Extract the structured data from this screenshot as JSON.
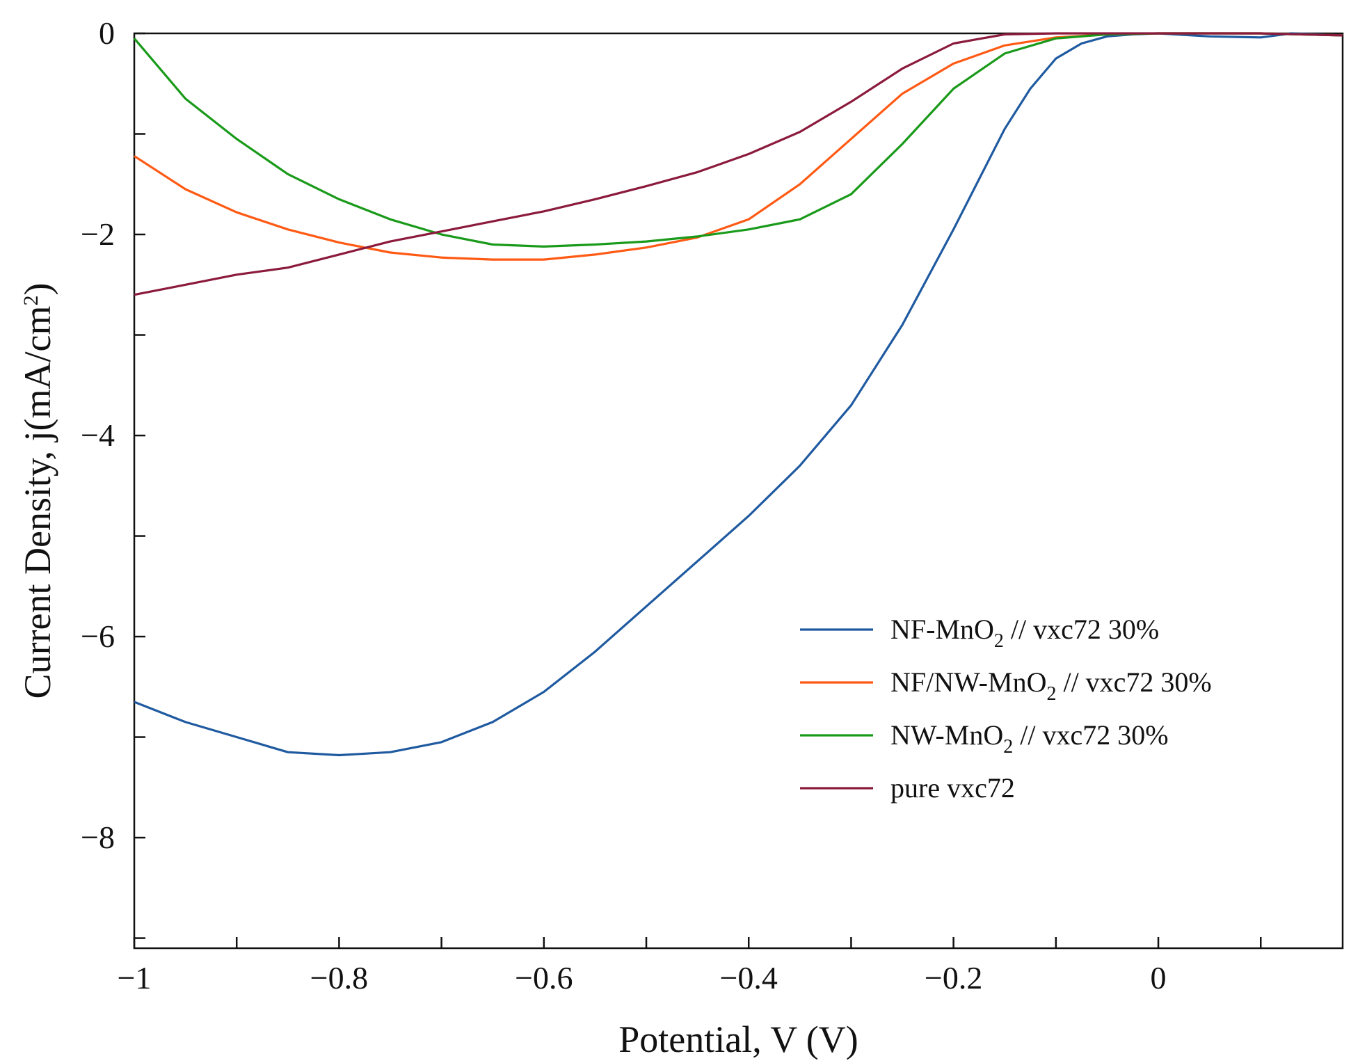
{
  "chart_data": {
    "type": "line",
    "title": "",
    "xlabel": "Potential, V (V)",
    "ylabel": {
      "base": "Current Density, j(mA/cm",
      "sup": "2",
      "end": ")"
    },
    "xlim": [
      -1.0,
      0.18
    ],
    "ylim": [
      -9.1,
      0.0
    ],
    "x_ticks": [
      {
        "value": -1.0,
        "label": "−1"
      },
      {
        "value": -0.8,
        "label": "−0.8"
      },
      {
        "value": -0.6,
        "label": "−0.6"
      },
      {
        "value": -0.4,
        "label": "−0.4"
      },
      {
        "value": -0.2,
        "label": "−0.2"
      },
      {
        "value": 0.0,
        "label": "0"
      }
    ],
    "x_minor_ticks": [
      -0.9,
      -0.7,
      -0.5,
      -0.3,
      -0.1,
      0.1
    ],
    "y_ticks": [
      {
        "value": 0,
        "label": "0"
      },
      {
        "value": -2,
        "label": "−2"
      },
      {
        "value": -4,
        "label": "−4"
      },
      {
        "value": -6,
        "label": "−6"
      },
      {
        "value": -8,
        "label": "−8"
      }
    ],
    "y_minor_ticks": [
      -1,
      -3,
      -5,
      -7,
      -9
    ],
    "grid": false,
    "legend_position": "center-right",
    "series": [
      {
        "name": "NF-MnO2 // vxc72 30%",
        "legend": {
          "pre": "NF-MnO",
          "sub": "2",
          "post": " // vxc72 30%"
        },
        "color": "#1f5aa0",
        "x": [
          -1.0,
          -0.95,
          -0.9,
          -0.85,
          -0.8,
          -0.75,
          -0.7,
          -0.65,
          -0.6,
          -0.55,
          -0.5,
          -0.45,
          -0.4,
          -0.35,
          -0.3,
          -0.25,
          -0.2,
          -0.175,
          -0.15,
          -0.125,
          -0.1,
          -0.075,
          -0.05,
          -0.025,
          0.0,
          0.05,
          0.1,
          0.13,
          0.18
        ],
        "y": [
          -6.65,
          -6.85,
          -7.0,
          -7.15,
          -7.18,
          -7.15,
          -7.05,
          -6.85,
          -6.55,
          -6.15,
          -5.7,
          -5.25,
          -4.8,
          -4.3,
          -3.7,
          -2.9,
          -1.95,
          -1.45,
          -0.95,
          -0.55,
          -0.25,
          -0.1,
          -0.03,
          -0.01,
          0.0,
          -0.03,
          -0.04,
          0.0,
          -0.02
        ]
      },
      {
        "name": "NF/NW-MnO2 // vxc72 30%",
        "legend": {
          "pre": "NF/NW-MnO",
          "sub": "2",
          "post": " // vxc72 30%"
        },
        "color": "#ff5a14",
        "x": [
          -1.0,
          -0.95,
          -0.9,
          -0.85,
          -0.8,
          -0.75,
          -0.7,
          -0.65,
          -0.6,
          -0.55,
          -0.5,
          -0.45,
          -0.4,
          -0.35,
          -0.3,
          -0.25,
          -0.2,
          -0.15,
          -0.1,
          -0.05,
          0.0,
          0.05,
          0.1,
          0.18
        ],
        "y": [
          -1.22,
          -1.55,
          -1.78,
          -1.95,
          -2.08,
          -2.18,
          -2.23,
          -2.25,
          -2.25,
          -2.2,
          -2.13,
          -2.03,
          -1.85,
          -1.5,
          -1.05,
          -0.6,
          -0.3,
          -0.12,
          -0.04,
          -0.01,
          0.0,
          0.0,
          0.0,
          -0.02
        ]
      },
      {
        "name": "NW-MnO2 // vxc72 30%",
        "legend": {
          "pre": "NW-MnO",
          "sub": "2",
          "post": " // vxc72 30%"
        },
        "color": "#1a9a1a",
        "x": [
          -1.0,
          -0.95,
          -0.9,
          -0.85,
          -0.8,
          -0.75,
          -0.7,
          -0.65,
          -0.6,
          -0.55,
          -0.5,
          -0.45,
          -0.4,
          -0.35,
          -0.3,
          -0.25,
          -0.2,
          -0.15,
          -0.1,
          -0.05,
          0.0,
          0.05,
          0.1,
          0.18
        ],
        "y": [
          -0.05,
          -0.65,
          -1.05,
          -1.4,
          -1.65,
          -1.85,
          -2.0,
          -2.1,
          -2.12,
          -2.1,
          -2.07,
          -2.02,
          -1.95,
          -1.85,
          -1.6,
          -1.1,
          -0.55,
          -0.2,
          -0.05,
          -0.01,
          0.0,
          0.0,
          0.0,
          -0.02
        ]
      },
      {
        "name": "pure vxc72",
        "legend": {
          "pre": "pure vxc72",
          "sub": "",
          "post": ""
        },
        "color": "#8b1a3c",
        "x": [
          -1.0,
          -0.95,
          -0.9,
          -0.85,
          -0.8,
          -0.75,
          -0.7,
          -0.65,
          -0.6,
          -0.55,
          -0.5,
          -0.45,
          -0.4,
          -0.35,
          -0.3,
          -0.25,
          -0.2,
          -0.15,
          -0.1,
          -0.05,
          0.0,
          0.05,
          0.1,
          0.18
        ],
        "y": [
          -2.6,
          -2.5,
          -2.4,
          -2.33,
          -2.2,
          -2.07,
          -1.97,
          -1.87,
          -1.77,
          -1.65,
          -1.52,
          -1.38,
          -1.2,
          -0.98,
          -0.68,
          -0.35,
          -0.1,
          -0.01,
          0.0,
          0.0,
          0.0,
          0.0,
          0.0,
          -0.02
        ]
      }
    ]
  }
}
